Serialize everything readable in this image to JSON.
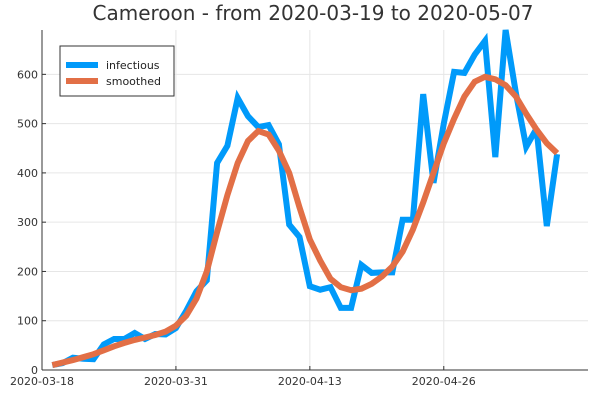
{
  "chart_data": {
    "type": "line",
    "title": "Cameroon - from 2020-03-19 to 2020-05-07",
    "xlabel": "",
    "ylabel": "",
    "xlim": [
      "2020-03-18",
      "2020-05-10"
    ],
    "ylim": [
      0,
      690
    ],
    "grid": true,
    "legend_position": "top-left",
    "x_ticks": [
      "2020-03-18",
      "2020-03-31",
      "2020-04-13",
      "2020-04-26"
    ],
    "y_ticks": [
      0,
      100,
      200,
      300,
      400,
      500,
      600
    ],
    "x": [
      "2020-03-19",
      "2020-03-20",
      "2020-03-21",
      "2020-03-22",
      "2020-03-23",
      "2020-03-24",
      "2020-03-25",
      "2020-03-26",
      "2020-03-27",
      "2020-03-28",
      "2020-03-29",
      "2020-03-30",
      "2020-03-31",
      "2020-04-01",
      "2020-04-02",
      "2020-04-03",
      "2020-04-04",
      "2020-04-05",
      "2020-04-06",
      "2020-04-07",
      "2020-04-08",
      "2020-04-09",
      "2020-04-10",
      "2020-04-11",
      "2020-04-12",
      "2020-04-13",
      "2020-04-14",
      "2020-04-15",
      "2020-04-16",
      "2020-04-17",
      "2020-04-18",
      "2020-04-19",
      "2020-04-20",
      "2020-04-21",
      "2020-04-22",
      "2020-04-23",
      "2020-04-24",
      "2020-04-25",
      "2020-04-26",
      "2020-04-27",
      "2020-04-28",
      "2020-04-29",
      "2020-04-30",
      "2020-05-01",
      "2020-05-02",
      "2020-05-03",
      "2020-05-04",
      "2020-05-05",
      "2020-05-06",
      "2020-05-07"
    ],
    "series": [
      {
        "name": "infectious",
        "color": "#009AFA",
        "values": [
          10,
          14,
          25,
          23,
          22,
          52,
          63,
          63,
          75,
          63,
          73,
          72,
          85,
          120,
          160,
          182,
          420,
          455,
          552,
          515,
          493,
          497,
          458,
          295,
          270,
          170,
          163,
          168,
          126,
          126,
          213,
          197,
          198,
          198,
          305,
          305,
          560,
          380,
          500,
          605,
          603,
          640,
          668,
          432,
          690,
          562,
          453,
          490,
          292,
          438
        ]
      },
      {
        "name": "smoothed",
        "color": "#E26F46",
        "values": [
          10,
          15,
          20,
          26,
          32,
          40,
          48,
          55,
          61,
          66,
          71,
          78,
          90,
          110,
          145,
          200,
          280,
          355,
          420,
          465,
          485,
          478,
          445,
          400,
          330,
          265,
          222,
          185,
          168,
          162,
          165,
          175,
          190,
          210,
          240,
          285,
          340,
          400,
          460,
          510,
          555,
          585,
          595,
          590,
          578,
          555,
          520,
          488,
          460,
          440
        ]
      }
    ]
  }
}
